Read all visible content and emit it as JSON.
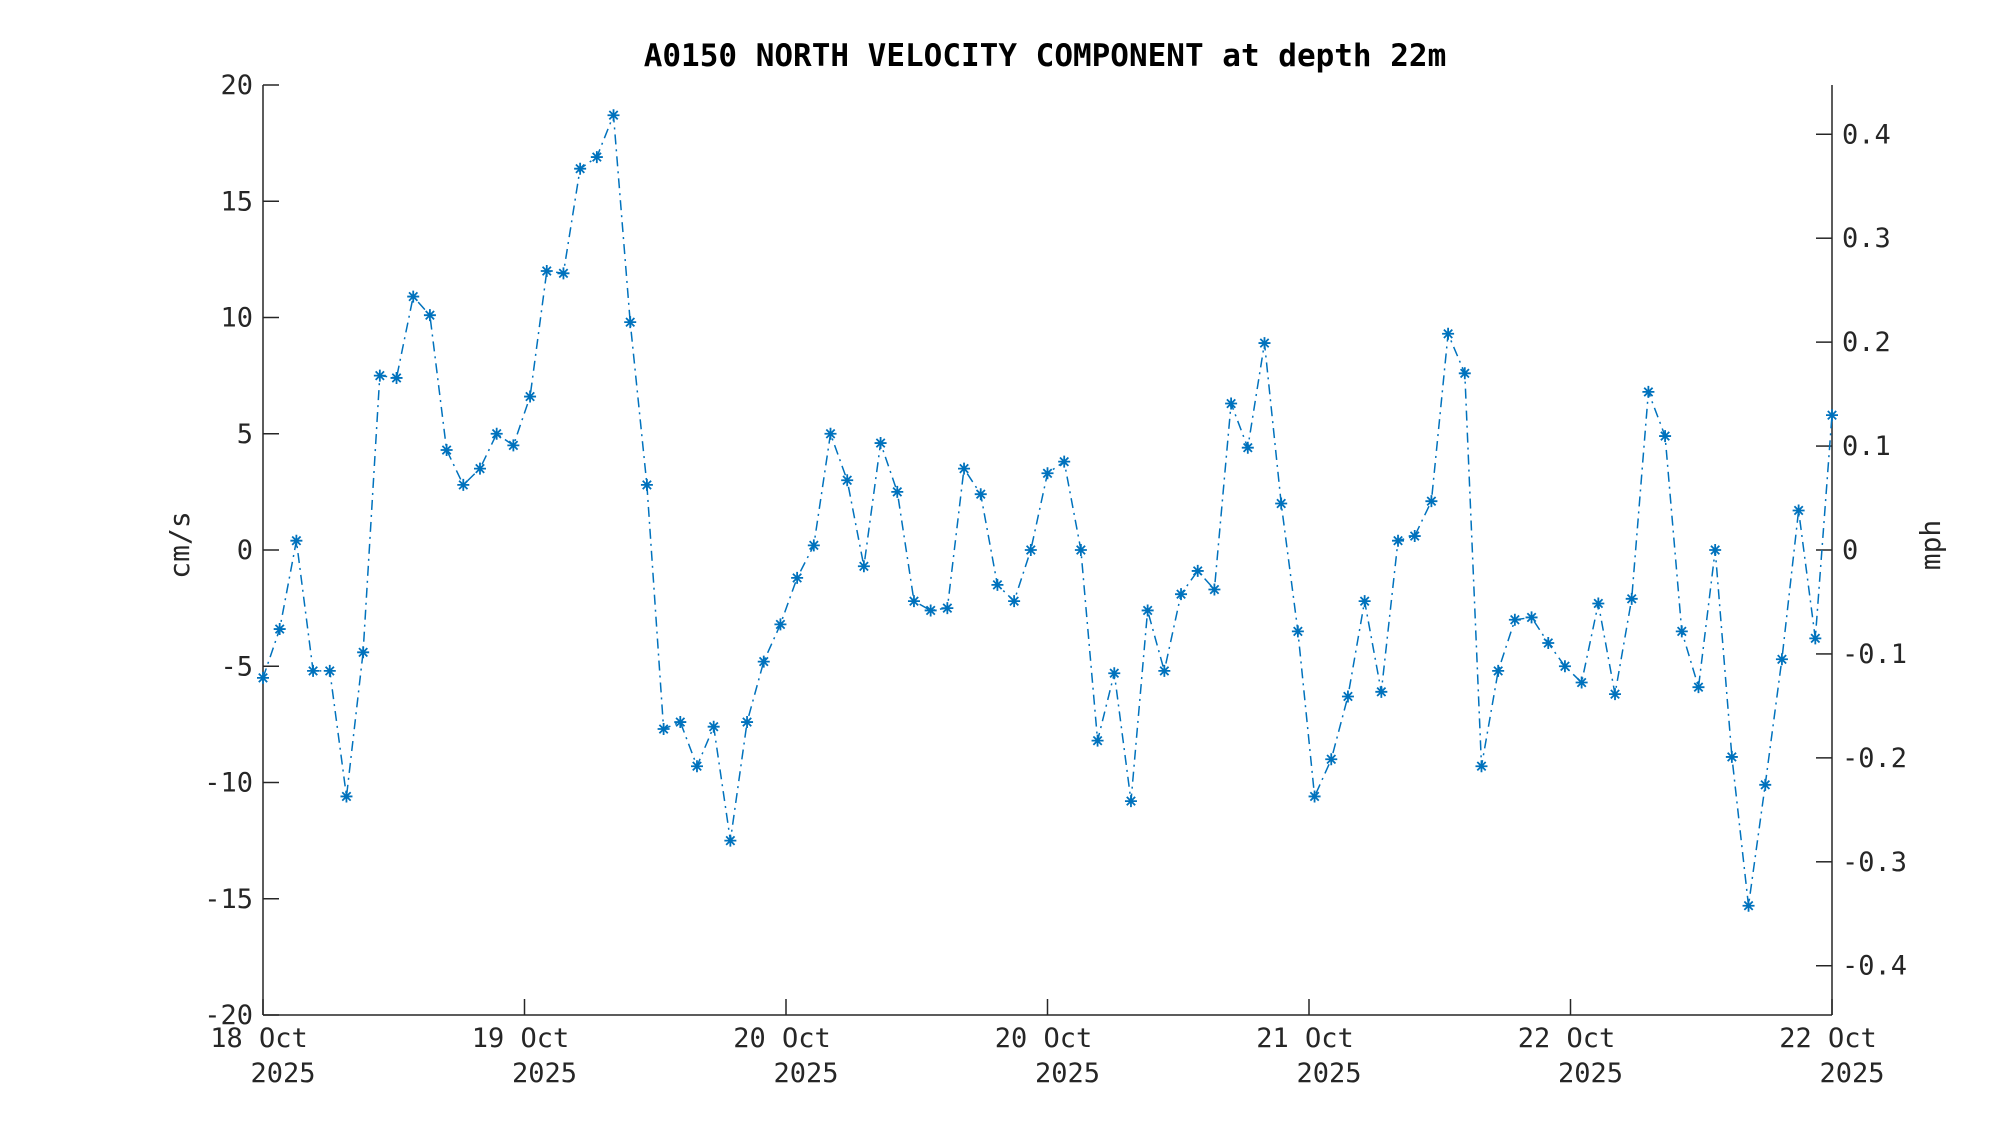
{
  "chart_data": {
    "type": "line",
    "title": "A0150 NORTH VELOCITY COMPONENT at depth 22m",
    "ylabel": "cm/s",
    "y2label": "mph",
    "ylim": [
      -20,
      20
    ],
    "y2lim": [
      -0.4474,
      0.4474
    ],
    "yticks": [
      -20,
      -15,
      -10,
      -5,
      0,
      5,
      10,
      15,
      20
    ],
    "y2ticks": [
      -0.4,
      -0.3,
      -0.2,
      -0.1,
      0,
      0.1,
      0.2,
      0.3,
      0.4
    ],
    "y2tick_labels": [
      "-0.4",
      "-0.3",
      "-0.2",
      "-0.1",
      "0",
      "0.1",
      "0.2",
      "0.3",
      "0.4"
    ],
    "xticks": [
      {
        "day": "18 Oct",
        "year": "2025"
      },
      {
        "day": "19 Oct",
        "year": "2025"
      },
      {
        "day": "20 Oct",
        "year": "2025"
      },
      {
        "day": "20 Oct",
        "year": "2025"
      },
      {
        "day": "21 Oct",
        "year": "2025"
      },
      {
        "day": "22 Oct",
        "year": "2025"
      },
      {
        "day": "22 Oct",
        "year": "2025"
      }
    ],
    "marker": "asterisk",
    "line_style": "dash-dot",
    "color": "#0072BD",
    "grid": false,
    "series": [
      {
        "values": [
          -5.5,
          -3.4,
          0.4,
          -5.2,
          -5.2,
          -10.6,
          -4.4,
          7.5,
          7.4,
          10.9,
          10.1,
          4.3,
          2.8,
          3.5,
          5.0,
          4.5,
          6.6,
          12.0,
          11.9,
          16.4,
          16.9,
          18.7,
          9.8,
          2.8,
          -7.7,
          -7.4,
          -9.3,
          -7.6,
          -12.5,
          -7.4,
          -4.8,
          -3.2,
          -1.2,
          0.2,
          5.0,
          3.0,
          -0.7,
          4.6,
          2.5,
          -2.2,
          -2.6,
          -2.5,
          3.5,
          2.4,
          -1.5,
          -2.2,
          0.0,
          3.3,
          3.8,
          0.0,
          -8.2,
          -5.3,
          -10.8,
          -2.6,
          -5.2,
          -1.9,
          -0.9,
          -1.7,
          6.3,
          4.4,
          8.9,
          2.0,
          -3.5,
          -10.6,
          -9.0,
          -6.3,
          -2.2,
          -6.1,
          0.4,
          0.6,
          2.1,
          9.3,
          7.6,
          -9.3,
          -5.2,
          -3.0,
          -2.9,
          -4.0,
          -5.0,
          -5.7,
          -2.3,
          -6.2,
          -2.1,
          6.8,
          4.9,
          -3.5,
          -5.9,
          0.0,
          -8.9,
          -15.3,
          -10.1,
          -4.7,
          1.7,
          -3.8,
          5.8
        ]
      }
    ]
  }
}
